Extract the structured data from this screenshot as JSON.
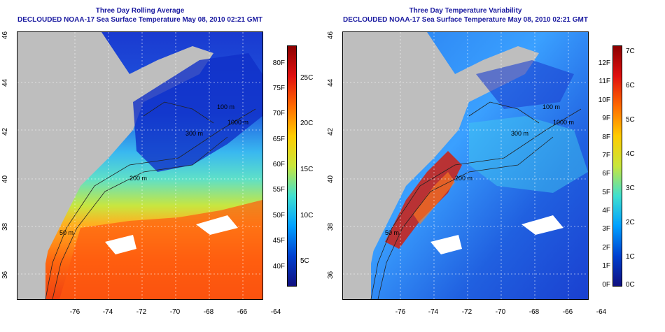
{
  "panels": [
    {
      "id": "left",
      "title": "Three Day Rolling Average",
      "subtitle": "DECLOUDED NOAA-17 Sea Surface Temperature May 08, 2010 02:21 GMT",
      "lat_ticks": [
        "46",
        "44",
        "42",
        "40",
        "38",
        "36"
      ],
      "lon_ticks": [
        "-76",
        "-74",
        "-72",
        "-70",
        "-68",
        "-66",
        "-64"
      ],
      "contours": [
        "50 m",
        "200 m",
        "300 m",
        "1000 m",
        "100 m"
      ],
      "colorbar_F": [
        "80F",
        "75F",
        "70F",
        "65F",
        "60F",
        "55F",
        "50F",
        "45F",
        "40F"
      ],
      "colorbar_C": [
        "25C",
        "20C",
        "15C",
        "10C",
        "5C"
      ],
      "colorbar_colors": [
        "#8b0000",
        "#e01010",
        "#ff6a00",
        "#ffcc00",
        "#c8e63c",
        "#40e0d0",
        "#00a0ff",
        "#0040d0",
        "#101080"
      ]
    },
    {
      "id": "right",
      "title": "Three Day Temperature Variability",
      "subtitle": "DECLOUDED NOAA-17 Sea Surface Temperature May 08, 2010 02:21 GMT",
      "lat_ticks": [
        "46",
        "44",
        "42",
        "40",
        "38",
        "36"
      ],
      "lon_ticks": [
        "-76",
        "-74",
        "-72",
        "-70",
        "-68",
        "-66",
        "-64"
      ],
      "contours": [
        "50 m",
        "200 m",
        "300 m",
        "1000 m",
        "100 m"
      ],
      "colorbar_F": [
        "12F",
        "11F",
        "10F",
        "9F",
        "8F",
        "7F",
        "6F",
        "5F",
        "4F",
        "3F",
        "2F",
        "1F",
        "0F"
      ],
      "colorbar_C": [
        "7C",
        "6C",
        "5C",
        "4C",
        "3C",
        "2C",
        "1C",
        "0C"
      ],
      "colorbar_colors": [
        "#8b0000",
        "#e01010",
        "#ff6a00",
        "#ffcc00",
        "#c8e63c",
        "#40e0d0",
        "#00a0ff",
        "#0040d0",
        "#101080"
      ]
    }
  ]
}
